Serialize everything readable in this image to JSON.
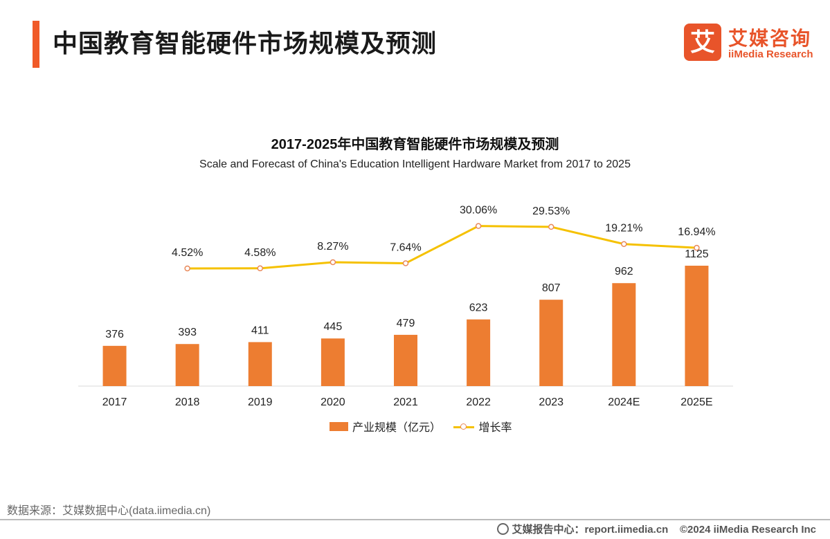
{
  "header": {
    "title": "中国教育智能硬件市场规模及预测",
    "logo_mark": "艾",
    "logo_cn": "艾媒咨询",
    "logo_en": "iiMedia Research",
    "accent_color": "#F05A28"
  },
  "chart_data": {
    "type": "bar",
    "title": "2017-2025年中国教育智能硬件市场规模及预测",
    "subtitle": "Scale and Forecast of China's Education Intelligent Hardware Market from 2017 to 2025",
    "categories": [
      "2017",
      "2018",
      "2019",
      "2020",
      "2021",
      "2022",
      "2023",
      "2024E",
      "2025E"
    ],
    "series": [
      {
        "name": "产业规模（亿元）",
        "type": "bar",
        "color": "#ED7D31",
        "values": [
          376,
          393,
          411,
          445,
          479,
          623,
          807,
          962,
          1125
        ],
        "labels": [
          "376",
          "393",
          "411",
          "445",
          "479",
          "623",
          "807",
          "962",
          "1125"
        ]
      },
      {
        "name": "增长率",
        "type": "line",
        "color": "#F5C100",
        "values": [
          null,
          4.52,
          4.58,
          8.27,
          7.64,
          30.06,
          29.53,
          19.21,
          16.94
        ],
        "labels": [
          "",
          "4.52%",
          "4.58%",
          "8.27%",
          "7.64%",
          "30.06%",
          "29.53%",
          "19.21%",
          "16.94%"
        ]
      }
    ],
    "legend_position": "bottom",
    "grid": false
  },
  "footer": {
    "source": "数据来源：艾媒数据中心(data.iimedia.cn)",
    "report_center": "艾媒报告中心：report.iimedia.cn",
    "copyright": "©2024  iiMedia Research  Inc"
  }
}
